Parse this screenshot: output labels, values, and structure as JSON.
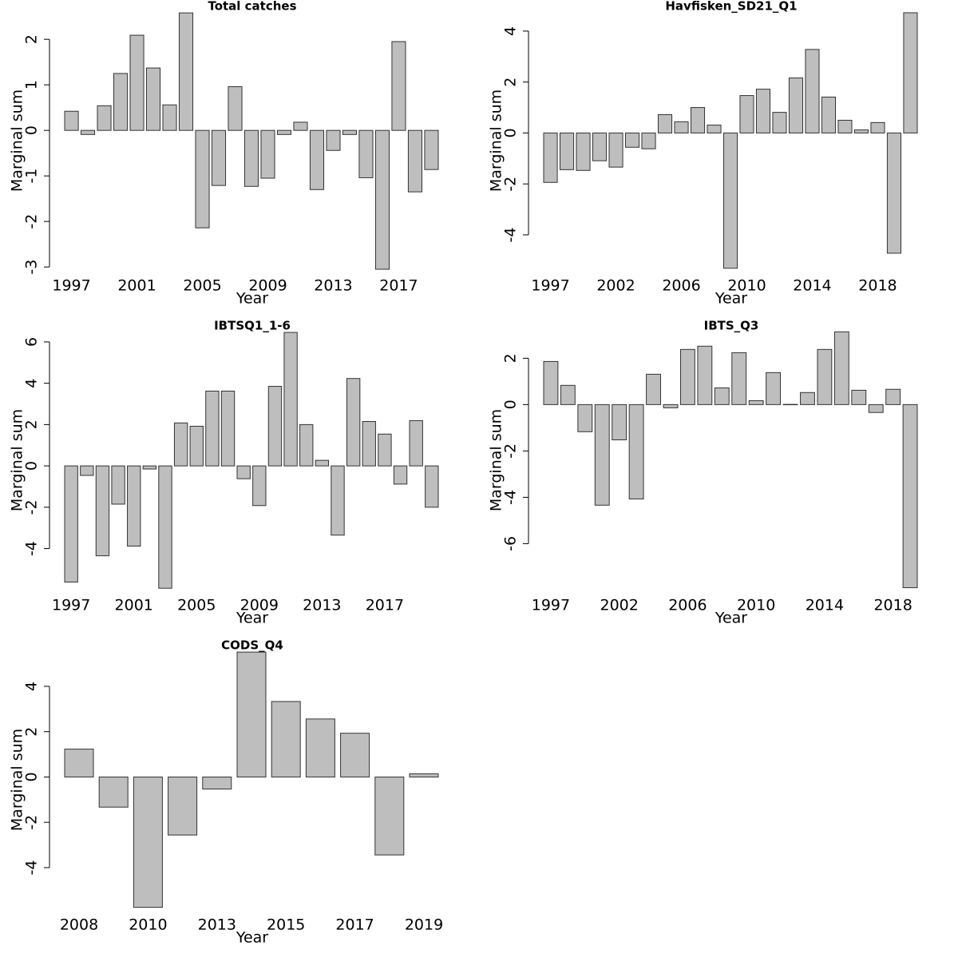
{
  "chart_data": [
    {
      "type": "bar",
      "title": "Total catches",
      "x_label": "Year",
      "y_label": "Marginal sum",
      "color": "#bebebe",
      "categories": [
        "1997",
        null,
        null,
        null,
        "2001",
        null,
        null,
        null,
        "2005",
        null,
        null,
        null,
        "2009",
        null,
        null,
        null,
        "2013",
        null,
        null,
        null,
        "2017",
        null,
        null
      ],
      "values": [
        0.42,
        -0.09,
        0.54,
        1.25,
        2.09,
        1.37,
        0.56,
        2.58,
        -2.14,
        -1.21,
        0.96,
        -1.23,
        -1.05,
        -0.09,
        0.18,
        -1.3,
        -0.44,
        -0.09,
        -1.04,
        -3.05,
        1.95,
        -1.35,
        -0.86
      ],
      "ylim": [
        -3.05,
        2.6
      ],
      "yticks": [
        -3,
        -2,
        -1,
        0,
        1,
        2
      ]
    },
    {
      "type": "bar",
      "title": "Havfisken_SD21_Q1",
      "x_label": "Year",
      "y_label": "Marginal sum",
      "color": "#bebebe",
      "categories": [
        "1997",
        null,
        null,
        null,
        "2002",
        null,
        null,
        null,
        "2006",
        null,
        null,
        null,
        "2010",
        null,
        null,
        null,
        "2014",
        null,
        null,
        null,
        "2018",
        null,
        null
      ],
      "values": [
        -1.94,
        -1.44,
        -1.47,
        -1.09,
        -1.34,
        -0.56,
        -0.62,
        0.72,
        0.44,
        1.0,
        0.31,
        -5.31,
        1.47,
        1.72,
        0.81,
        2.16,
        3.28,
        1.41,
        0.5,
        0.12,
        0.41,
        -4.72,
        4.72
      ],
      "ylim": [
        -5.35,
        4.75
      ],
      "yticks": [
        -4,
        -2,
        0,
        2,
        4
      ]
    },
    {
      "type": "bar",
      "title": "IBTSQ1_1-6",
      "x_label": "Year",
      "y_label": "Marginal sum",
      "color": "#bebebe",
      "categories": [
        "1997",
        null,
        null,
        null,
        "2001",
        null,
        null,
        null,
        "2005",
        null,
        null,
        null,
        "2009",
        null,
        null,
        null,
        "2013",
        null,
        null,
        null,
        "2017",
        null,
        null,
        null
      ],
      "values": [
        -5.62,
        -0.46,
        -4.35,
        -1.85,
        -3.88,
        -0.15,
        -5.92,
        2.08,
        1.92,
        3.62,
        3.62,
        -0.62,
        -1.92,
        3.85,
        6.46,
        2.0,
        0.27,
        -3.35,
        4.23,
        2.15,
        1.54,
        -0.88,
        2.19,
        -2.0
      ],
      "ylim": [
        -5.95,
        6.5
      ],
      "yticks": [
        -4,
        -2,
        0,
        2,
        4,
        6
      ]
    },
    {
      "type": "bar",
      "title": "IBTS_Q3",
      "x_label": "Year",
      "y_label": "Marginal sum",
      "color": "#bebebe",
      "categories": [
        "1997",
        null,
        null,
        null,
        "2002",
        null,
        null,
        null,
        "2006",
        null,
        null,
        null,
        "2010",
        null,
        null,
        null,
        "2014",
        null,
        null,
        null,
        "2018",
        null
      ],
      "values": [
        1.86,
        0.83,
        -1.17,
        -4.34,
        -1.52,
        -4.07,
        1.31,
        -0.14,
        2.38,
        2.52,
        0.72,
        2.24,
        0.17,
        1.38,
        0.01,
        0.52,
        2.38,
        3.14,
        0.62,
        -0.34,
        0.66,
        -7.9
      ],
      "ylim": [
        -7.95,
        3.15
      ],
      "yticks": [
        -6,
        -4,
        -2,
        0,
        2
      ]
    },
    {
      "type": "bar",
      "title": "CODS_Q4",
      "x_label": "Year",
      "y_label": "Marginal sum",
      "color": "#bebebe",
      "categories": [
        "2008",
        null,
        "2010",
        null,
        "2013",
        null,
        "2015",
        null,
        "2017",
        null,
        "2019"
      ],
      "values": [
        1.23,
        -1.33,
        -5.75,
        -2.56,
        -0.53,
        5.51,
        3.33,
        2.56,
        1.93,
        -3.44,
        0.14
      ],
      "ylim": [
        -5.8,
        5.55
      ],
      "yticks": [
        -4,
        -2,
        0,
        2,
        4
      ]
    }
  ]
}
